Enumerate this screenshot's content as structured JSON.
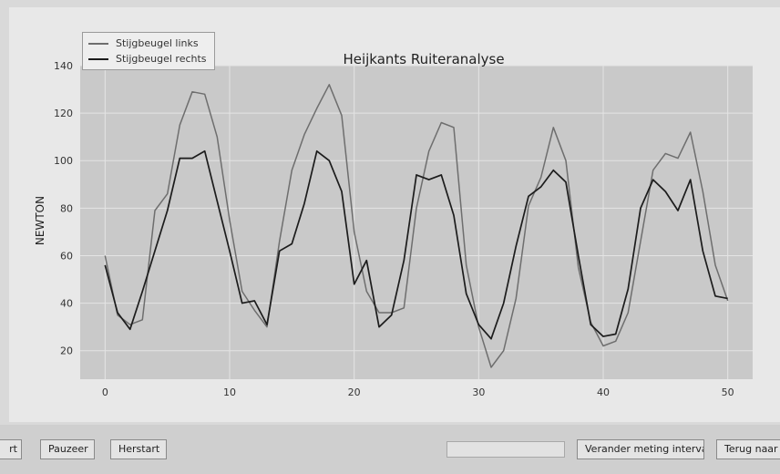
{
  "chart_data": {
    "type": "line",
    "title": "Heijkants Ruiteranalyse",
    "xlabel": "",
    "ylabel": "NEWTON",
    "xlim": [
      -2,
      52
    ],
    "ylim": [
      8,
      140
    ],
    "x_ticks": [
      0,
      10,
      20,
      30,
      40,
      50
    ],
    "y_ticks": [
      20,
      40,
      60,
      80,
      100,
      120,
      140
    ],
    "grid": true,
    "legend_position": "top-left",
    "series": [
      {
        "name": "Stijgbeugel links",
        "color": "#6e6e6e",
        "values": [
          60,
          35,
          31,
          33,
          79,
          86,
          115,
          129,
          128,
          110,
          75,
          45,
          37,
          30,
          66,
          96,
          111,
          122,
          132,
          119,
          70,
          45,
          36,
          36,
          38,
          80,
          104,
          116,
          114,
          56,
          30,
          13,
          20,
          42,
          81,
          93,
          114,
          100,
          55,
          32,
          22,
          24,
          36,
          66,
          96,
          103,
          101,
          112,
          87,
          56,
          41
        ]
      },
      {
        "name": "Stijgbeugel rechts",
        "color": "#1c1c1c",
        "values": [
          56,
          36,
          29,
          45,
          62,
          79,
          101,
          101,
          104,
          83,
          62,
          40,
          41,
          31,
          62,
          65,
          82,
          104,
          100,
          87,
          48,
          58,
          30,
          35,
          58,
          94,
          92,
          94,
          77,
          44,
          31,
          25,
          40,
          64,
          85,
          89,
          96,
          91,
          60,
          31,
          26,
          27,
          46,
          80,
          92,
          87,
          79,
          92,
          62,
          43,
          42
        ]
      }
    ]
  },
  "toolbar": {
    "btn_left": "rt",
    "btn_pause": "Pauzeer",
    "btn_restart": "Herstart",
    "btn_interval": "Verander meting intervals",
    "btn_back": "Terug naar St"
  }
}
